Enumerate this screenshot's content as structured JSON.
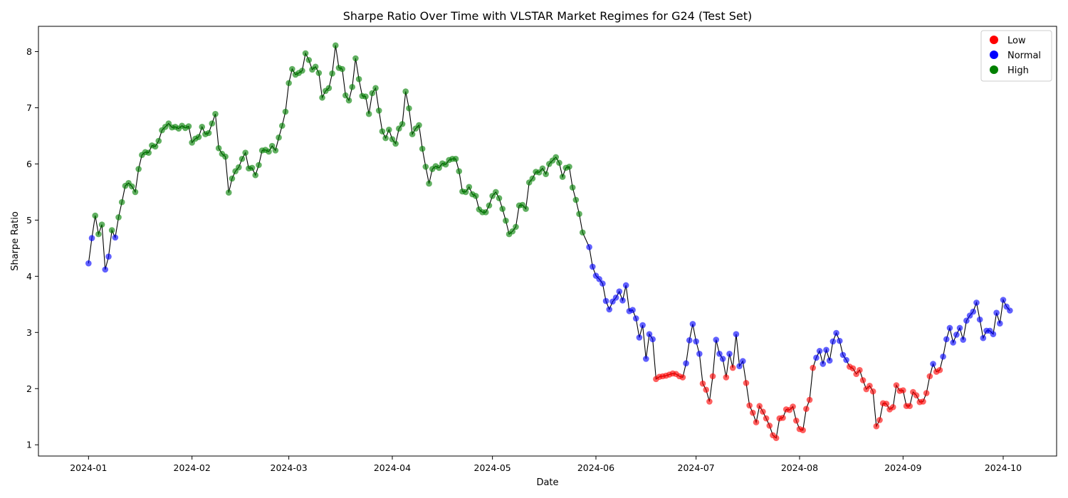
{
  "chart_data": {
    "type": "scatter",
    "title": "Sharpe Ratio Over Time with VLSTAR Market Regimes for G24 (Test Set)",
    "xlabel": "Date",
    "ylabel": "Sharpe Ratio",
    "xlim": [
      "2023-12-17",
      "2024-10-17"
    ],
    "ylim": [
      0.8,
      8.45
    ],
    "x_ticks": [
      "2024-01-01",
      "2024-02-01",
      "2024-03-01",
      "2024-04-01",
      "2024-05-01",
      "2024-06-01",
      "2024-07-01",
      "2024-08-01",
      "2024-09-01",
      "2024-10-01"
    ],
    "x_tick_labels": [
      "2024-01",
      "2024-02",
      "2024-03",
      "2024-04",
      "2024-05",
      "2024-06",
      "2024-07",
      "2024-08",
      "2024-09",
      "2024-10"
    ],
    "y_ticks": [
      1,
      2,
      3,
      4,
      5,
      6,
      7,
      8
    ],
    "grid": false,
    "legend": {
      "position": "top-right",
      "entries": [
        {
          "label": "Low",
          "color": "#ff0000"
        },
        {
          "label": "Normal",
          "color": "#0000ff"
        },
        {
          "label": "High",
          "color": "#008000"
        }
      ]
    },
    "line_color": "#000000",
    "regime_colors": {
      "Low": "#ff0000",
      "Normal": "#0000ff",
      "High": "#008000"
    },
    "segments": [
      {
        "regime": "Normal",
        "start": "2024-01-01",
        "values": [
          4.23,
          4.68
        ]
      },
      {
        "regime": "High",
        "start": "2024-01-03",
        "values": [
          5.08,
          4.75,
          4.92
        ]
      },
      {
        "regime": "Normal",
        "start": "2024-01-06",
        "values": [
          4.12,
          4.35
        ]
      },
      {
        "regime": "High",
        "start": "2024-01-08",
        "values": [
          4.82
        ]
      },
      {
        "regime": "Normal",
        "start": "2024-01-09",
        "values": [
          4.69
        ]
      },
      {
        "regime": "High",
        "start": "2024-01-10",
        "values": [
          5.05,
          5.32,
          5.61,
          5.66,
          5.6,
          5.5,
          5.91,
          6.16,
          6.21,
          6.2,
          6.33,
          6.31,
          6.41,
          6.6,
          6.66,
          6.72,
          6.65,
          6.66,
          6.63,
          6.68,
          6.64,
          6.67,
          6.38,
          6.45,
          6.48,
          6.66,
          6.53,
          6.55,
          6.72,
          6.89,
          6.28,
          6.18,
          6.13,
          5.49,
          5.74,
          5.87,
          5.94,
          6.09,
          6.2,
          5.92,
          5.93,
          5.8,
          5.98,
          6.24,
          6.25,
          6.22,
          6.32,
          6.24,
          6.47,
          6.68,
          6.93,
          7.44,
          7.69,
          7.59,
          7.62,
          7.66,
          7.97,
          7.85,
          7.68,
          7.73,
          7.62,
          7.18,
          7.3,
          7.35,
          7.61,
          8.11,
          7.71,
          7.69,
          7.22,
          7.13,
          7.37,
          7.88,
          7.51,
          7.21,
          7.2,
          6.89,
          7.26,
          7.35,
          6.95,
          6.58,
          6.46,
          6.61,
          6.44,
          6.36,
          6.63,
          6.71,
          7.29,
          6.99,
          6.53,
          6.63,
          6.69,
          6.27,
          5.95,
          5.65,
          5.91,
          5.96,
          5.93,
          6.01,
          5.99,
          6.07,
          6.09,
          6.09,
          5.87,
          5.51,
          5.5,
          5.59,
          5.46,
          5.43,
          5.19,
          5.14,
          5.14,
          5.26,
          5.43,
          5.5,
          5.39,
          5.2,
          4.99,
          4.75,
          4.8,
          4.88,
          5.26,
          5.27,
          5.2,
          5.67,
          5.74,
          5.86,
          5.85,
          5.92,
          5.82,
          6.0,
          6.06,
          6.12,
          6.02,
          5.77,
          5.93,
          5.95,
          5.58,
          5.36,
          5.11,
          4.78
        ]
      },
      {
        "regime": "Normal",
        "start": "2024-05-30",
        "values": [
          4.52,
          4.17,
          4.01,
          3.95,
          3.87,
          3.56,
          3.41,
          3.55,
          3.62,
          3.73,
          3.57,
          3.84,
          3.38,
          3.4,
          3.25,
          2.91,
          3.13,
          2.53,
          2.97,
          2.88
        ]
      },
      {
        "regime": "Low",
        "start": "2024-06-19",
        "values": [
          2.17,
          2.21,
          2.22,
          2.23,
          2.25,
          2.27,
          2.26,
          2.22,
          2.2
        ]
      },
      {
        "regime": "Normal",
        "start": "2024-06-28",
        "values": [
          2.45,
          2.86,
          3.15,
          2.84,
          2.62
        ]
      },
      {
        "regime": "Low",
        "start": "2024-07-03",
        "values": [
          2.09,
          1.98,
          1.77,
          2.22
        ]
      },
      {
        "regime": "Normal",
        "start": "2024-07-07",
        "values": [
          2.87,
          2.62,
          2.53
        ]
      },
      {
        "regime": "Low",
        "start": "2024-07-10",
        "values": [
          2.2
        ]
      },
      {
        "regime": "Normal",
        "start": "2024-07-11",
        "values": [
          2.62
        ]
      },
      {
        "regime": "Low",
        "start": "2024-07-12",
        "values": [
          2.37
        ]
      },
      {
        "regime": "Normal",
        "start": "2024-07-13",
        "values": [
          2.97,
          2.4,
          2.49
        ]
      },
      {
        "regime": "Low",
        "start": "2024-07-16",
        "values": [
          2.1,
          1.7,
          1.57,
          1.4,
          1.69,
          1.59,
          1.47,
          1.34,
          1.17,
          1.12,
          1.47,
          1.48,
          1.63,
          1.62,
          1.68,
          1.43,
          1.28,
          1.26,
          1.64,
          1.8,
          2.37
        ]
      },
      {
        "regime": "Normal",
        "start": "2024-08-06",
        "values": [
          2.55,
          2.67,
          2.44,
          2.69,
          2.5,
          2.84,
          2.99,
          2.85,
          2.6,
          2.51
        ]
      },
      {
        "regime": "Low",
        "start": "2024-08-16",
        "values": [
          2.39,
          2.36,
          2.26,
          2.33,
          2.15,
          1.99,
          2.05,
          1.95,
          1.33,
          1.44,
          1.74,
          1.73,
          1.63,
          1.67,
          2.06,
          1.96,
          1.97,
          1.69,
          1.69,
          1.94,
          1.88,
          1.76,
          1.77,
          1.92,
          2.22
        ]
      },
      {
        "regime": "Normal",
        "start": "2024-09-10",
        "values": [
          2.44
        ]
      },
      {
        "regime": "Low",
        "start": "2024-09-11",
        "values": [
          2.3,
          2.33
        ]
      },
      {
        "regime": "Normal",
        "start": "2024-09-13",
        "values": [
          2.57,
          2.88,
          3.08,
          2.82,
          2.96,
          3.08,
          2.87,
          3.21,
          3.3,
          3.37,
          3.53,
          3.23,
          2.9,
          3.03,
          3.03,
          2.97,
          3.35,
          3.16,
          3.58,
          3.46,
          3.39
        ]
      }
    ]
  }
}
